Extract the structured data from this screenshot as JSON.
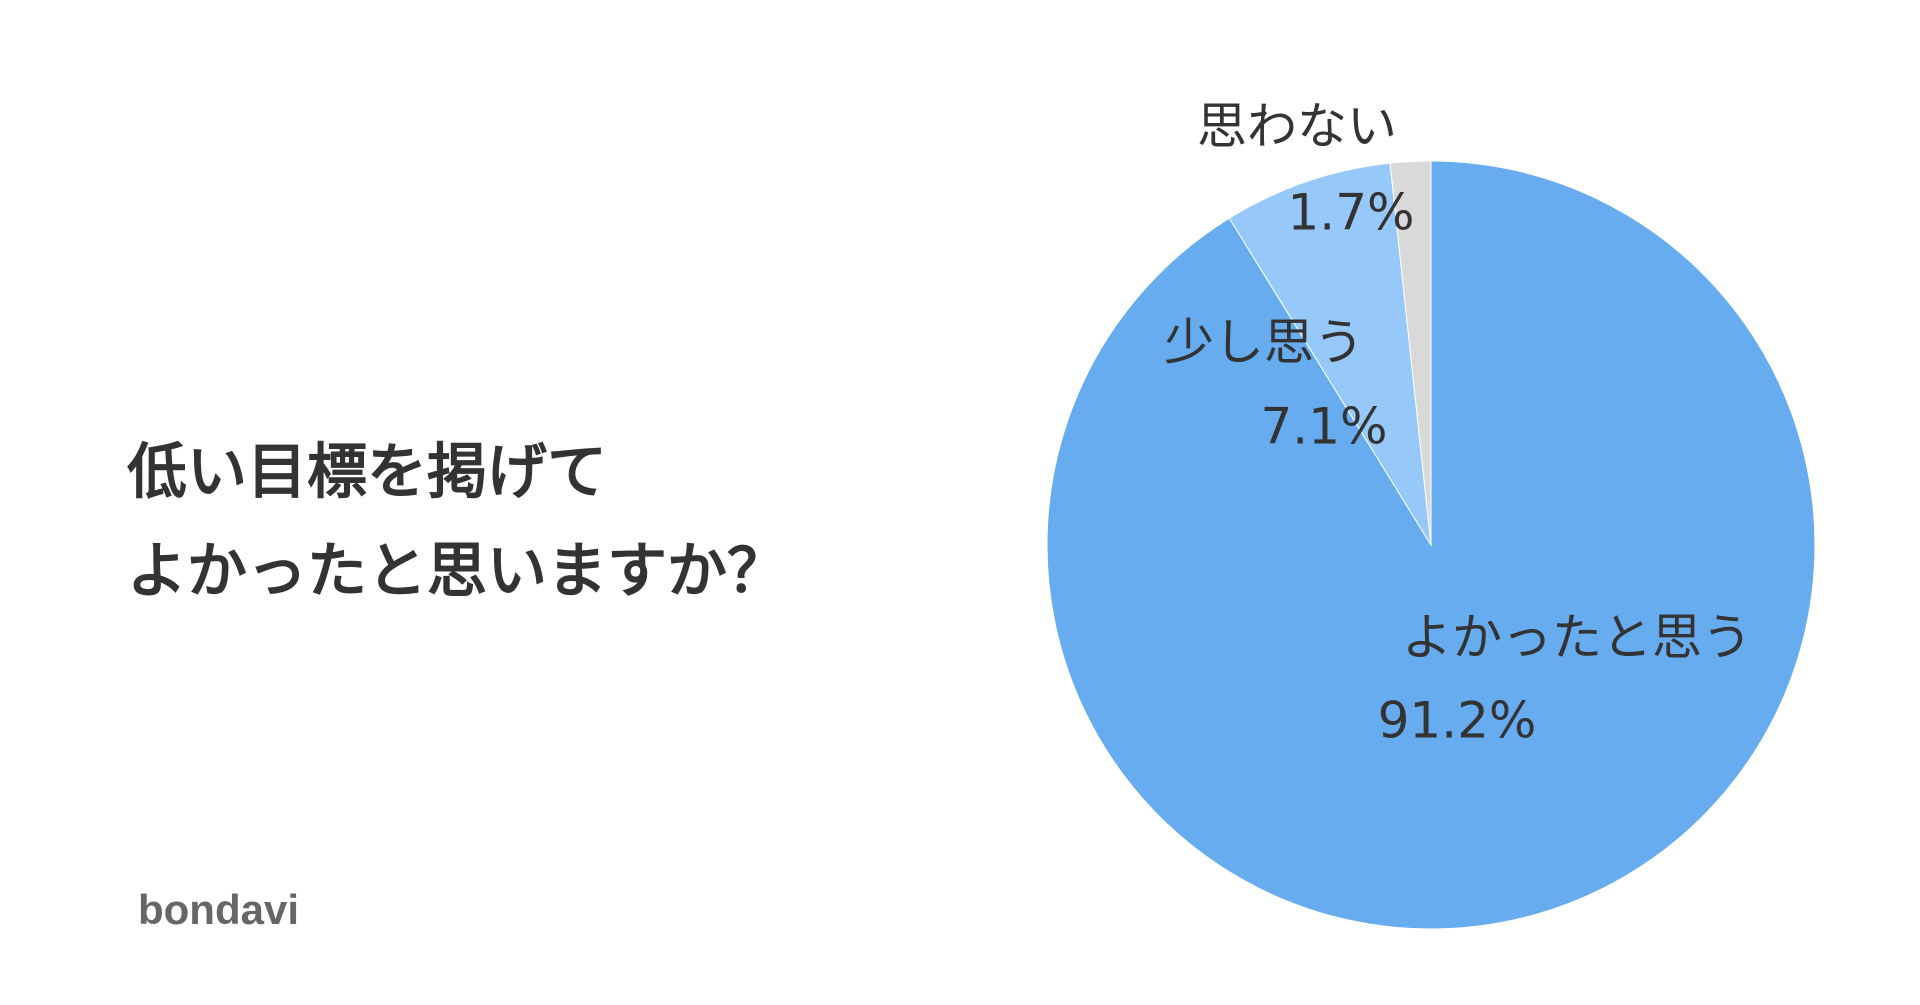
{
  "chart_data": {
    "type": "pie",
    "title": [
      "低い目標を掲げて",
      "よかったと思いますか？"
    ],
    "categories": [
      "よかったと思う",
      "少し思う",
      "思わない"
    ],
    "values": [
      91.2,
      7.1,
      1.7
    ],
    "value_labels": [
      "91.2%",
      "7.1%",
      "1.7%"
    ],
    "colors": [
      "#68acf0",
      "#96c8fa",
      "#d9d9d9"
    ],
    "watermark": "bondavi"
  }
}
